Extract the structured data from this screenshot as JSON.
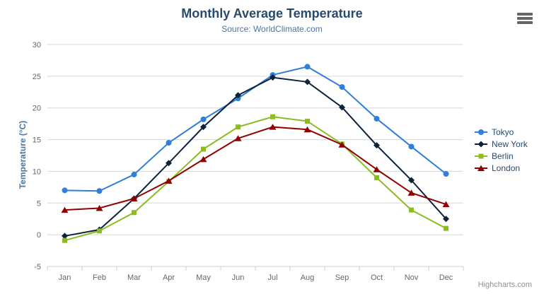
{
  "title": "Monthly Average Temperature",
  "subtitle": "Source: WorldClimate.com",
  "credits": "Highcharts.com",
  "export_menu_icon": "hamburger-icon",
  "colors": {
    "title": "#274b6d",
    "subtitle": "#4d759e",
    "axis_title": "#4d759e",
    "axis_labels": "#666666",
    "grid_line": "#d8d8d8",
    "axis_line": "#c0d0e0",
    "legend_text": "#274b6d",
    "credits_text": "#909090",
    "export_icon": "#666666",
    "background": "#ffffff"
  },
  "chart_data": {
    "type": "line",
    "title": "Monthly Average Temperature",
    "subtitle": "Source: WorldClimate.com",
    "xlabel": "",
    "ylabel": "Temperature (°C)",
    "categories": [
      "Jan",
      "Feb",
      "Mar",
      "Apr",
      "May",
      "Jun",
      "Jul",
      "Aug",
      "Sep",
      "Oct",
      "Nov",
      "Dec"
    ],
    "ylim": [
      -5,
      30
    ],
    "yticks": [
      -5,
      0,
      5,
      10,
      15,
      20,
      25,
      30
    ],
    "grid": true,
    "legend_position": "right",
    "series": [
      {
        "name": "Tokyo",
        "color": "#2f7ed8",
        "marker": "circle-marker-icon",
        "values": [
          7.0,
          6.9,
          9.5,
          14.5,
          18.2,
          21.5,
          25.2,
          26.5,
          23.3,
          18.3,
          13.9,
          9.6
        ]
      },
      {
        "name": "New York",
        "color": "#0d233a",
        "marker": "diamond-marker-icon",
        "values": [
          -0.2,
          0.8,
          5.7,
          11.3,
          17.0,
          22.0,
          24.8,
          24.1,
          20.1,
          14.1,
          8.6,
          2.5
        ]
      },
      {
        "name": "Berlin",
        "color": "#8bbc21",
        "marker": "square-marker-icon",
        "values": [
          -0.9,
          0.6,
          3.5,
          8.4,
          13.5,
          17.0,
          18.6,
          17.9,
          14.3,
          9.0,
          3.9,
          1.0
        ]
      },
      {
        "name": "London",
        "color": "#910000",
        "marker": "triangle-marker-icon",
        "values": [
          3.9,
          4.2,
          5.7,
          8.5,
          11.9,
          15.2,
          17.0,
          16.6,
          14.2,
          10.3,
          6.6,
          4.8
        ]
      }
    ]
  }
}
